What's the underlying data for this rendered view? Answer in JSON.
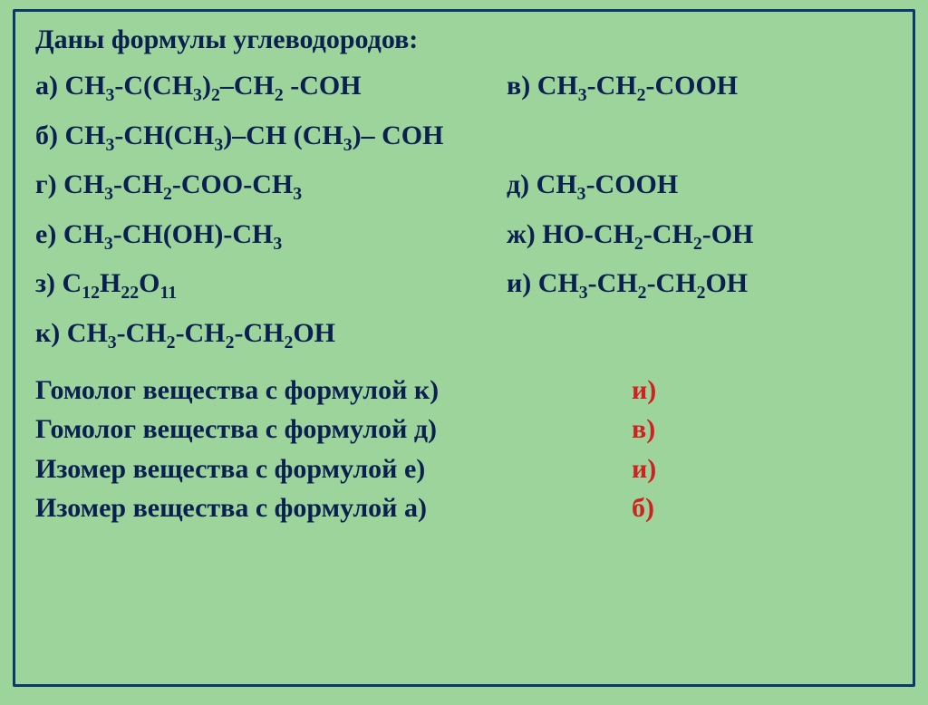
{
  "background_color": "#9cd49c",
  "border_color": "#0a3a6a",
  "text_color": "#0a2050",
  "answer_color": "#d02020",
  "font_family": "Times New Roman",
  "title_fontsize": 30,
  "body_fontsize": 30,
  "title": "Даны формулы углеводородов:",
  "items": {
    "a": {
      "label": "а)",
      "formula_html": "СН<sub>3</sub>-С(СН<sub>3</sub>)<sub>2</sub>–СН<sub>2</sub> -СОН"
    },
    "b": {
      "label": "б)",
      "formula_html": "СН<sub>3</sub>-СН(СН<sub>3</sub>)–СН (СН<sub>3</sub>)– СОН"
    },
    "v": {
      "label": "в)",
      "formula_html": "СН<sub>3</sub>-СН<sub>2</sub>-СООН"
    },
    "g": {
      "label": "г)",
      "formula_html": "СН<sub>3</sub>-СН<sub>2</sub>-СОО-СН<sub>3</sub>"
    },
    "d": {
      "label": "д)",
      "formula_html": "СН<sub>3</sub>-СООН"
    },
    "e": {
      "label": "е)",
      "formula_html": "СН<sub>3</sub>-СН(ОН)-СН<sub>3</sub>"
    },
    "zh": {
      "label": "ж)",
      "formula_html": "НО-СН<sub>2</sub>-СН<sub>2</sub>-ОН"
    },
    "z": {
      "label": "з)",
      "formula_html": "С<sub>12</sub>Н<sub>22</sub>О<sub>11</sub>"
    },
    "i": {
      "label": "и)",
      "formula_html": "СН<sub>3</sub>-СН<sub>2</sub>-СН<sub>2</sub>ОН"
    },
    "k": {
      "label": "к)",
      "formula_html": "СН<sub>3</sub>-СН<sub>2</sub>-СН<sub>2</sub>-СН<sub>2</sub>ОН"
    }
  },
  "questions": [
    {
      "text": "Гомолог вещества с формулой к)",
      "answer": "и)"
    },
    {
      "text": "Гомолог вещества с формулой д)",
      "answer": "в)"
    },
    {
      "text": "Изомер  вещества с формулой е)",
      "answer": "и)"
    },
    {
      "text": "Изомер  вещества с формулой а)",
      "answer": "б)"
    }
  ]
}
